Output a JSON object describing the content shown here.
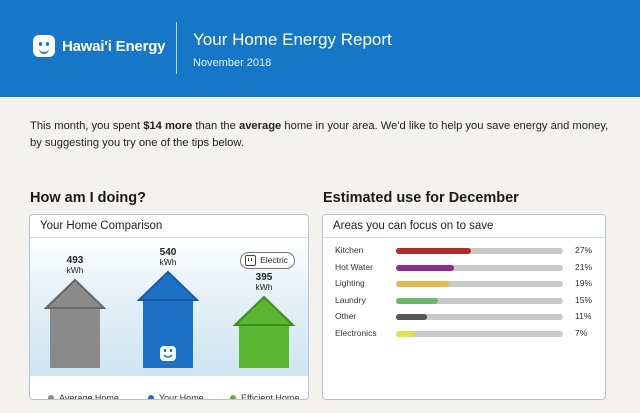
{
  "header": {
    "brand": "Hawai'i Energy",
    "title": "Your Home Energy Report",
    "date": "November 2018",
    "logo_icon": "smiley-plug-icon",
    "color": "#1677c8"
  },
  "intro": {
    "part1": "This month, you spent ",
    "amount": "$14 more",
    "part2": " than the ",
    "emph": "average",
    "part3": " home in your area. We'd like to help you save energy and money, by suggesting you try one of the tips below."
  },
  "left_section": {
    "title": "How am I doing?",
    "panel_title": "Your Home Comparison",
    "badge": "Electric",
    "badge_icon": "plug-icon"
  },
  "right_section": {
    "title": "Estimated use for December",
    "panel_title": "Areas you can focus on to save"
  },
  "chart_data": [
    {
      "type": "bar",
      "title": "Your Home Comparison",
      "categories": [
        "Average Home",
        "Your Home",
        "Efficient Home"
      ],
      "values": [
        493,
        540,
        395
      ],
      "unit": "kWh",
      "value_labels": [
        "493",
        "540",
        "395"
      ],
      "colors": [
        "#8a8a8a",
        "#1d72c7",
        "#5cb532"
      ],
      "legend": "bottom"
    },
    {
      "type": "bar",
      "title": "Areas you can focus on to save",
      "orientation": "horizontal",
      "categories": [
        "Kitchen",
        "Hot Water",
        "Lighting",
        "Laundry",
        "Other",
        "Electronics"
      ],
      "values": [
        27,
        21,
        19,
        15,
        11,
        7
      ],
      "percent_labels": [
        "27%",
        "21%",
        "19%",
        "15%",
        "11%",
        "7%"
      ],
      "colors": [
        "#b5292d",
        "#8e2a8a",
        "#e8b94a",
        "#6cb86a",
        "#555555",
        "#e2e24a"
      ],
      "xlim": [
        0,
        100
      ]
    }
  ]
}
